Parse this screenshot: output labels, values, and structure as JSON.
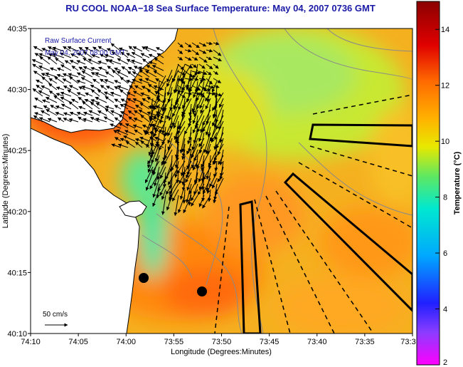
{
  "title": "RU COOL  NOAA−18  Sea Surface Temperature:  May 04, 2007 0736 GMT",
  "inset": {
    "line1": "Raw Surface Current",
    "line2": "May 04, 2007 08:00 GMT"
  },
  "scale_label": "50 cm/s",
  "x_axis": {
    "label": "Longitude (Degrees:Minutes)",
    "ticks": [
      "74:10",
      "74:05",
      "74:00",
      "73:55",
      "73:50",
      "73:45",
      "73:40",
      "73:35",
      "73:3"
    ]
  },
  "y_axis": {
    "label": "Latitude (Degrees:Minutes)",
    "ticks": [
      "40:35",
      "40:30",
      "40:25",
      "40:20",
      "40:15",
      "40:10"
    ]
  },
  "colorbar": {
    "label": "Temperature (°C)",
    "ticks": [
      "14",
      "12",
      "10",
      "8",
      "6",
      "4",
      "2"
    ],
    "range": [
      2,
      15
    ],
    "colors": [
      "#ff00ff",
      "#3b3bff",
      "#00a0ff",
      "#00e0e0",
      "#40e080",
      "#e8e800",
      "#ffb000",
      "#ff6a00",
      "#e00000",
      "#8b0000"
    ]
  },
  "colors": {
    "title": "#1a1aa6",
    "inset_text": "#1a1aa6",
    "land": "#ffffff",
    "contours": "#8a8a8a",
    "vectors": "#000000"
  },
  "markers": [
    "black-dot-north",
    "black-dot-south"
  ]
}
